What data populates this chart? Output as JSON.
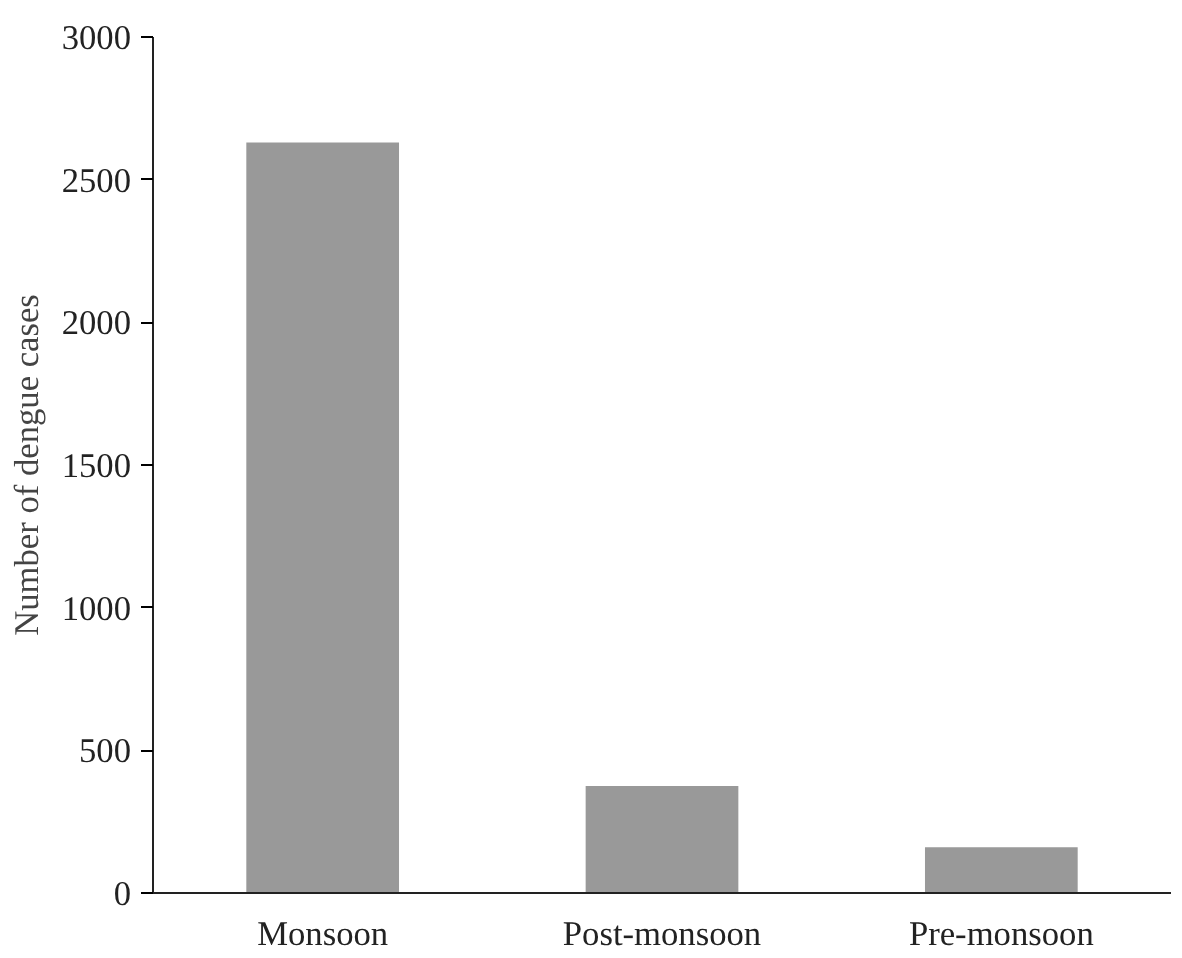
{
  "chart_data": {
    "type": "bar",
    "ylabel": "Number of dengue cases",
    "categories": [
      "Monsoon",
      "Post-monsoon",
      "Pre-monsoon"
    ],
    "values": [
      2630,
      375,
      160
    ],
    "color": "#999999",
    "ylim": [
      0,
      3000
    ],
    "yticks": [
      0,
      500,
      1000,
      1500,
      2000,
      2500,
      3000
    ],
    "grid": false
  }
}
